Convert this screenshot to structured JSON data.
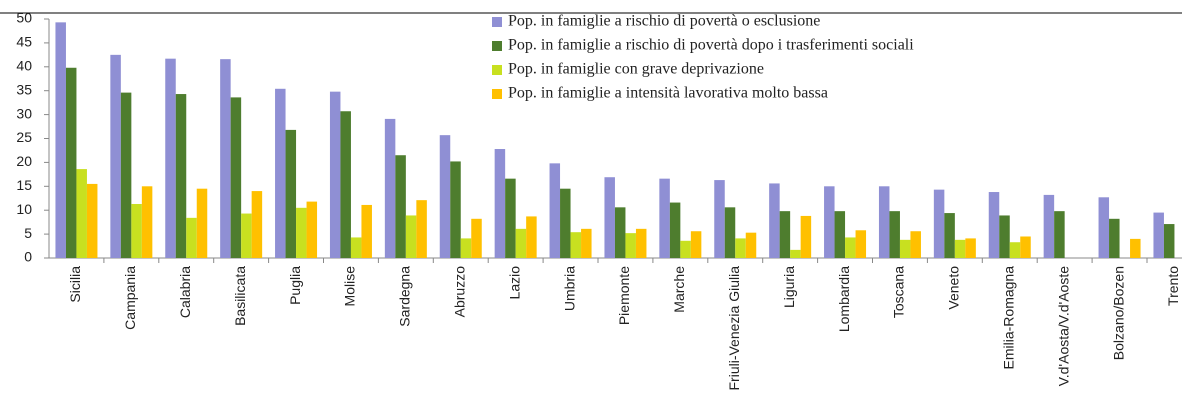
{
  "chart_data": {
    "type": "bar",
    "categories": [
      "Sicilia",
      "Campania",
      "Calabria",
      "Basilicata",
      "Puglia",
      "Molise",
      "Sardegna",
      "Abruzzo",
      "Lazio",
      "Umbria",
      "Piemonte",
      "Marche",
      "Friuli-Venezia Giulia",
      "Liguria",
      "Lombardia",
      "Toscana",
      "Veneto",
      "Emilia-Romagna",
      "V.d'Aosta/V.d'Aoste",
      "Bolzano/Bozen",
      "Trento"
    ],
    "series": [
      {
        "name": "Pop. in famiglie a rischio di povertà o esclusione",
        "color": "#8f8fd4",
        "values": [
          49.3,
          42.5,
          41.7,
          41.6,
          35.4,
          34.8,
          29.1,
          25.7,
          22.8,
          19.8,
          16.9,
          16.6,
          16.3,
          15.6,
          15.0,
          15.0,
          14.3,
          13.8,
          13.2,
          12.7,
          9.5
        ]
      },
      {
        "name": "Pop. in famiglie a rischio di povertà dopo i trasferimenti sociali",
        "color": "#4e7d2e",
        "values": [
          39.8,
          34.6,
          34.3,
          33.6,
          26.8,
          30.7,
          21.5,
          20.2,
          16.6,
          14.5,
          10.6,
          11.6,
          10.6,
          9.8,
          9.8,
          9.8,
          9.4,
          8.9,
          9.8,
          8.2,
          7.1
        ]
      },
      {
        "name": "Pop. in famiglie con grave deprivazione",
        "color": "#c8e020",
        "values": [
          18.6,
          11.3,
          8.4,
          9.3,
          10.5,
          4.3,
          8.9,
          4.1,
          6.1,
          5.4,
          5.2,
          3.6,
          4.1,
          1.7,
          4.3,
          3.8,
          3.8,
          3.3,
          null,
          null,
          null
        ]
      },
      {
        "name": "Pop. in famiglie a intensità lavorativa molto bassa",
        "color": "#ffc000",
        "values": [
          15.5,
          15.0,
          14.5,
          14.0,
          11.8,
          11.1,
          12.1,
          8.2,
          8.7,
          6.1,
          6.1,
          5.6,
          5.3,
          8.8,
          5.8,
          5.6,
          4.1,
          4.5,
          null,
          4.0,
          null
        ]
      }
    ],
    "ylim": [
      0,
      50
    ],
    "yticks": [
      0,
      5,
      10,
      15,
      20,
      25,
      30,
      35,
      40,
      45,
      50
    ]
  }
}
